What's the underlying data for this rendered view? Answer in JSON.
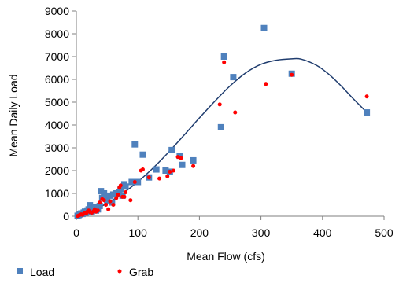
{
  "chart_data": {
    "type": "scatter",
    "title": "",
    "xlabel": "Mean Flow (cfs)",
    "ylabel": "Mean Daily Load",
    "xlim": [
      0,
      500
    ],
    "ylim": [
      0,
      9000
    ],
    "x_ticks": [
      0,
      100,
      200,
      300,
      400,
      500
    ],
    "y_ticks": [
      0,
      1000,
      2000,
      3000,
      4000,
      5000,
      6000,
      7000,
      8000,
      9000
    ],
    "grid": false,
    "legend_position": "bottom-left",
    "series": [
      {
        "name": "Load",
        "marker": "square",
        "color": "#4F81BD",
        "points": [
          [
            2,
            20
          ],
          [
            4,
            50
          ],
          [
            6,
            80
          ],
          [
            8,
            120
          ],
          [
            10,
            100
          ],
          [
            12,
            160
          ],
          [
            14,
            200
          ],
          [
            15,
            150
          ],
          [
            18,
            250
          ],
          [
            20,
            300
          ],
          [
            22,
            480
          ],
          [
            25,
            200
          ],
          [
            28,
            350
          ],
          [
            30,
            400
          ],
          [
            32,
            250
          ],
          [
            35,
            300
          ],
          [
            38,
            450
          ],
          [
            40,
            1100
          ],
          [
            42,
            800
          ],
          [
            45,
            1000
          ],
          [
            50,
            700
          ],
          [
            55,
            900
          ],
          [
            58,
            600
          ],
          [
            60,
            950
          ],
          [
            65,
            1000
          ],
          [
            70,
            1050
          ],
          [
            72,
            1200
          ],
          [
            75,
            900
          ],
          [
            78,
            1400
          ],
          [
            80,
            1300
          ],
          [
            90,
            1500
          ],
          [
            95,
            3150
          ],
          [
            100,
            1500
          ],
          [
            108,
            2700
          ],
          [
            118,
            1700
          ],
          [
            130,
            2050
          ],
          [
            145,
            2000
          ],
          [
            152,
            1950
          ],
          [
            155,
            2900
          ],
          [
            168,
            2650
          ],
          [
            172,
            2250
          ],
          [
            190,
            2450
          ],
          [
            235,
            3900
          ],
          [
            240,
            7000
          ],
          [
            255,
            6100
          ],
          [
            305,
            8250
          ],
          [
            350,
            6250
          ],
          [
            472,
            4550
          ]
        ]
      },
      {
        "name": "Grab",
        "marker": "circle",
        "color": "#FF0000",
        "points": [
          [
            2,
            10
          ],
          [
            4,
            30
          ],
          [
            6,
            60
          ],
          [
            8,
            80
          ],
          [
            10,
            60
          ],
          [
            12,
            100
          ],
          [
            14,
            150
          ],
          [
            16,
            120
          ],
          [
            18,
            200
          ],
          [
            20,
            250
          ],
          [
            22,
            180
          ],
          [
            25,
            150
          ],
          [
            28,
            220
          ],
          [
            30,
            300
          ],
          [
            32,
            200
          ],
          [
            35,
            250
          ],
          [
            38,
            600
          ],
          [
            42,
            750
          ],
          [
            45,
            700
          ],
          [
            48,
            500
          ],
          [
            52,
            300
          ],
          [
            55,
            650
          ],
          [
            60,
            500
          ],
          [
            65,
            800
          ],
          [
            68,
            950
          ],
          [
            70,
            1250
          ],
          [
            72,
            1350
          ],
          [
            75,
            850
          ],
          [
            78,
            850
          ],
          [
            80,
            1050
          ],
          [
            88,
            700
          ],
          [
            95,
            1500
          ],
          [
            105,
            2000
          ],
          [
            108,
            2050
          ],
          [
            118,
            1700
          ],
          [
            135,
            1650
          ],
          [
            148,
            1750
          ],
          [
            152,
            1950
          ],
          [
            158,
            2000
          ],
          [
            165,
            2600
          ],
          [
            170,
            2550
          ],
          [
            190,
            2200
          ],
          [
            233,
            4900
          ],
          [
            240,
            6750
          ],
          [
            258,
            4550
          ],
          [
            308,
            5800
          ],
          [
            350,
            6200
          ],
          [
            472,
            5250
          ]
        ]
      }
    ],
    "trendline": {
      "type": "polynomial",
      "color": "#1F3C6E",
      "points": [
        [
          0,
          0
        ],
        [
          25,
          236
        ],
        [
          50,
          566
        ],
        [
          75,
          992
        ],
        [
          100,
          1510
        ],
        [
          125,
          2120
        ],
        [
          150,
          2810
        ],
        [
          175,
          3550
        ],
        [
          200,
          4310
        ],
        [
          225,
          5040
        ],
        [
          250,
          5720
        ],
        [
          275,
          6280
        ],
        [
          300,
          6660
        ],
        [
          325,
          6840
        ],
        [
          350,
          6900
        ],
        [
          365,
          6890
        ],
        [
          390,
          6620
        ],
        [
          410,
          6230
        ],
        [
          430,
          5720
        ],
        [
          450,
          5150
        ],
        [
          472,
          4550
        ]
      ]
    }
  }
}
